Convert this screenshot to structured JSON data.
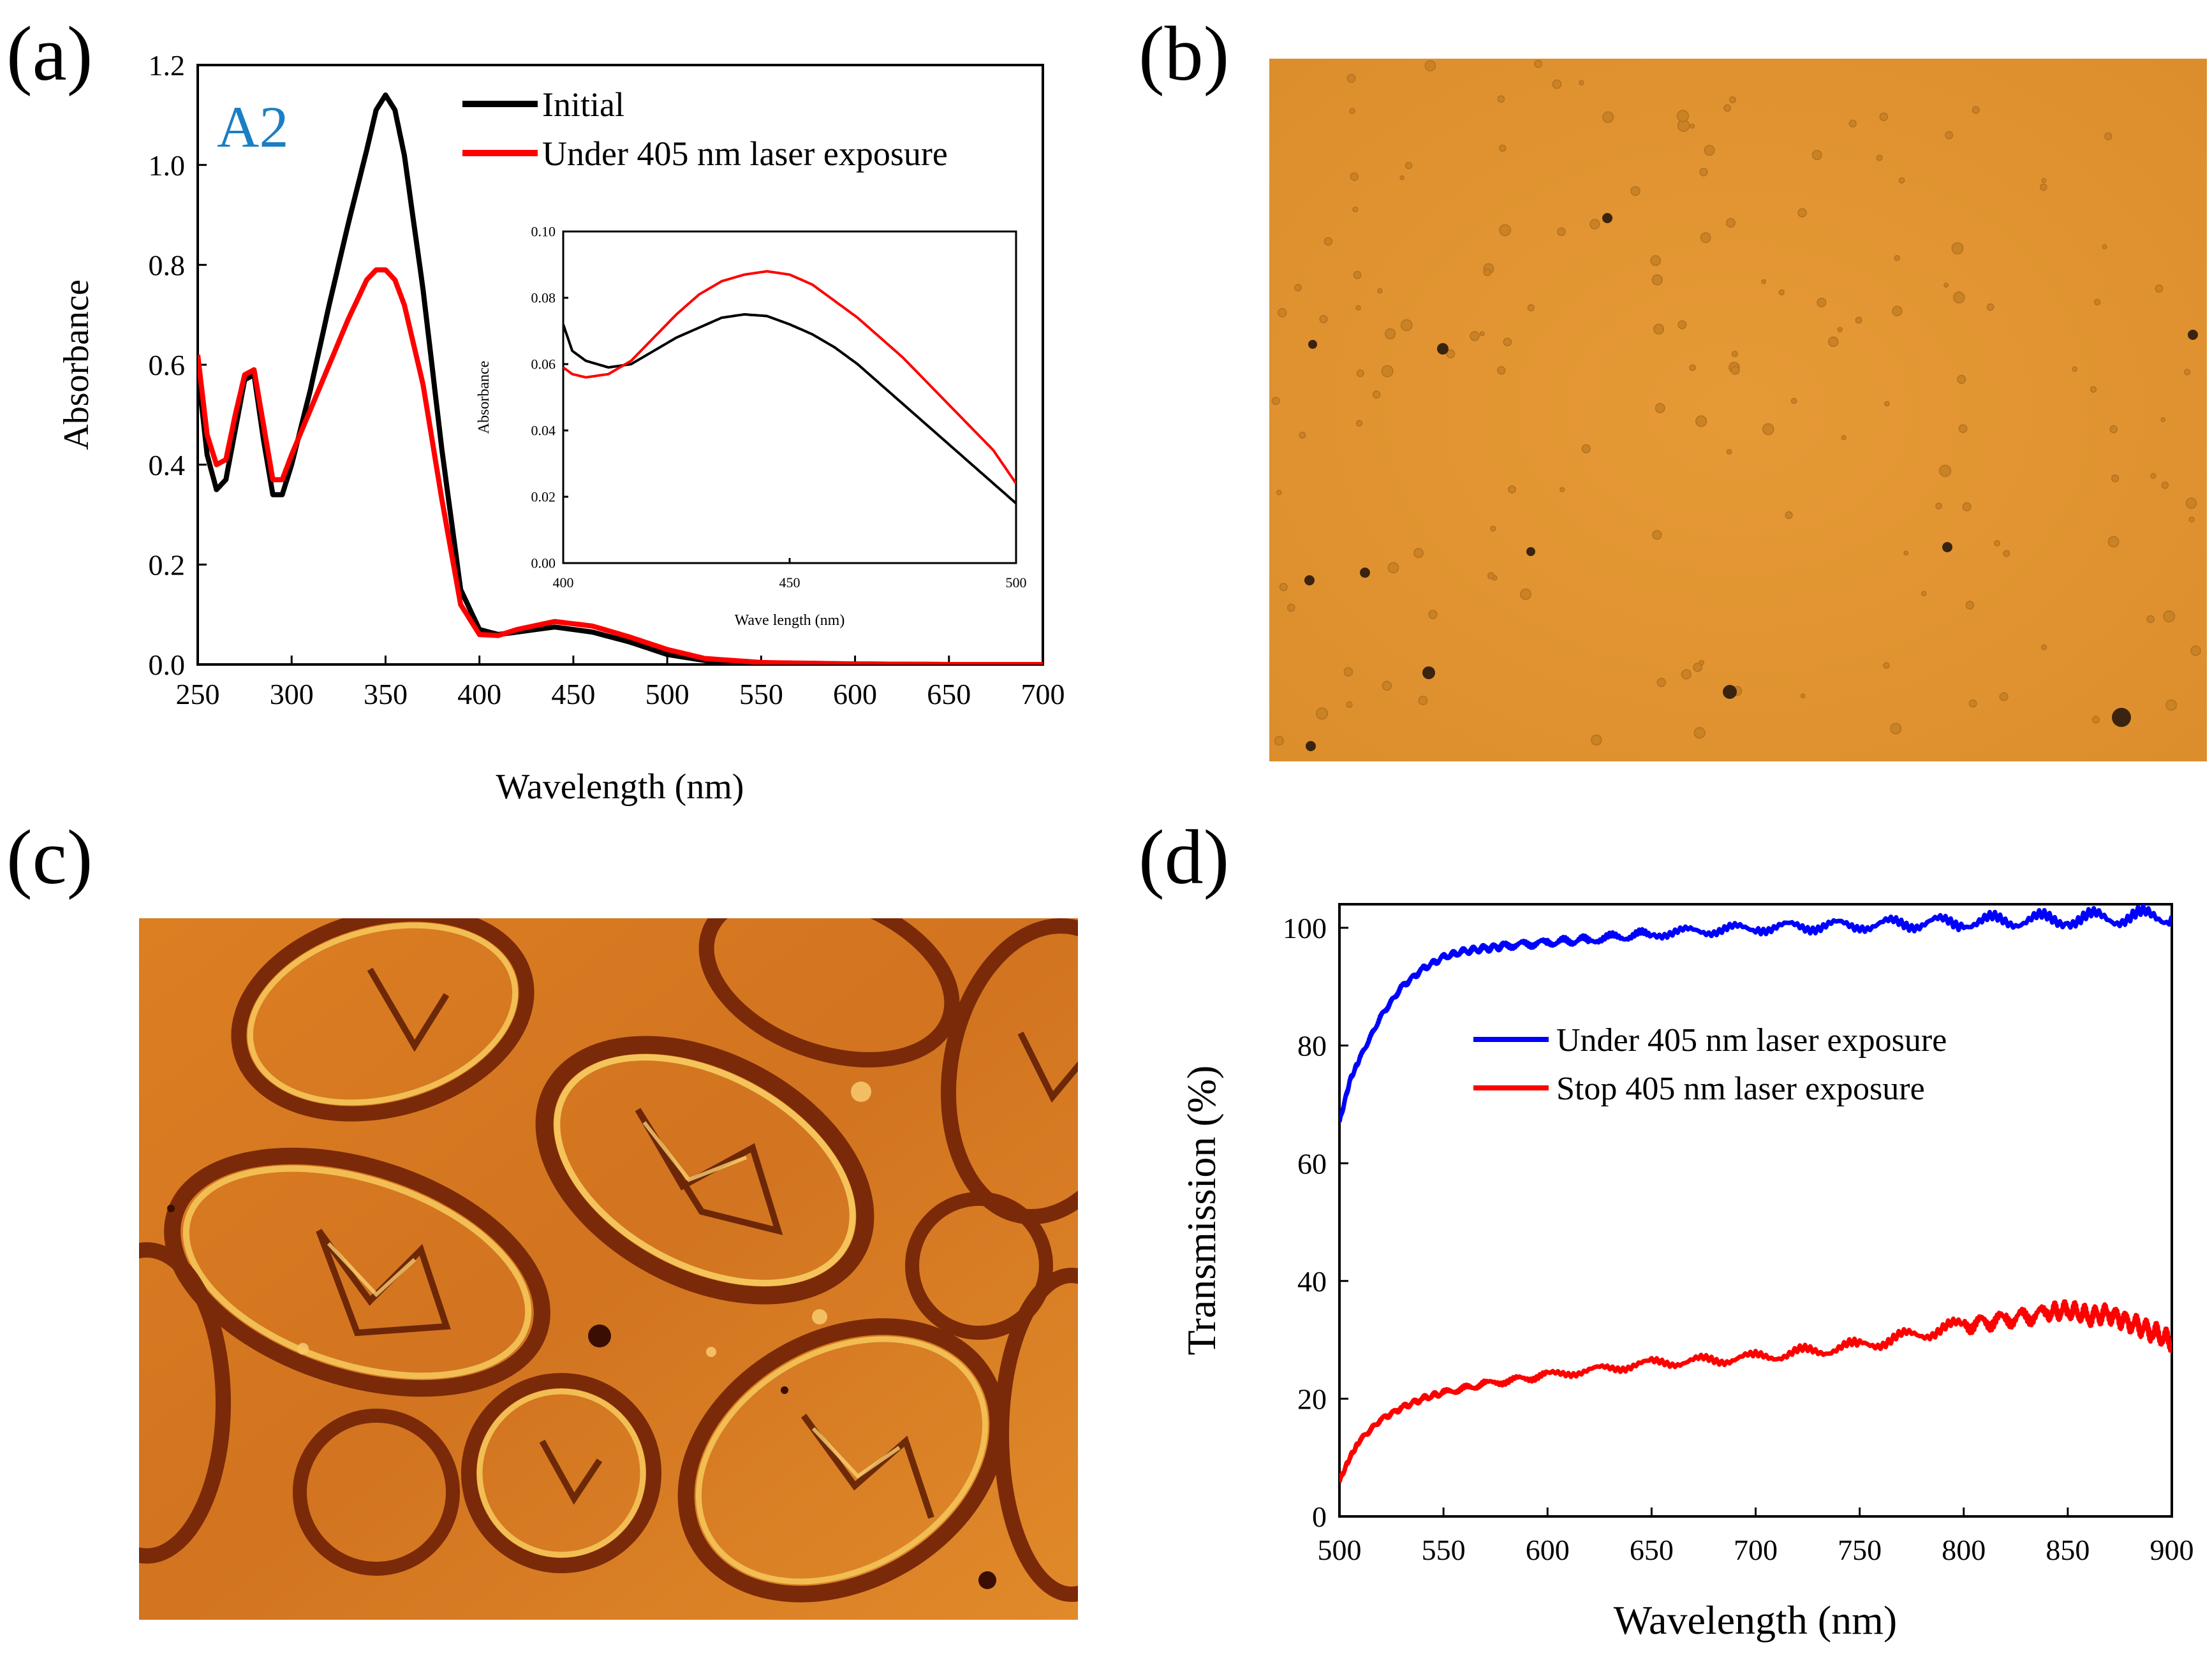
{
  "panels": {
    "a": "(a)",
    "b": "(b)",
    "c": "(c)",
    "d": "(d)"
  },
  "chart_data": [
    {
      "id": "a",
      "type": "line",
      "tag": "A2",
      "xlabel": "Wavelength (nm)",
      "ylabel": "Absorbance",
      "xlim": [
        250,
        700
      ],
      "ylim": [
        0,
        1.2
      ],
      "xticks": [
        250,
        300,
        350,
        400,
        450,
        500,
        550,
        600,
        650,
        700
      ],
      "yticks": [
        0.0,
        0.2,
        0.4,
        0.6,
        0.8,
        1.0,
        1.2
      ],
      "ytick_labels": [
        "0.0",
        "0.2",
        "0.4",
        "0.6",
        "0.8",
        "1.0",
        "1.2"
      ],
      "legend": "top-right",
      "series": [
        {
          "name": "Initial",
          "color": "#000000",
          "x": [
            250,
            255,
            260,
            265,
            270,
            275,
            280,
            285,
            290,
            295,
            300,
            310,
            320,
            330,
            340,
            345,
            350,
            355,
            360,
            370,
            380,
            390,
            400,
            410,
            420,
            440,
            460,
            480,
            500,
            520,
            550,
            600,
            650,
            700
          ],
          "y": [
            0.59,
            0.42,
            0.35,
            0.37,
            0.47,
            0.57,
            0.58,
            0.45,
            0.34,
            0.34,
            0.4,
            0.55,
            0.72,
            0.88,
            1.03,
            1.11,
            1.14,
            1.11,
            1.02,
            0.75,
            0.43,
            0.15,
            0.07,
            0.06,
            0.065,
            0.075,
            0.065,
            0.045,
            0.02,
            0.008,
            0.003,
            0.001,
            0.0,
            0.0
          ]
        },
        {
          "name": "Under 405 nm laser exposure",
          "color": "#ff0000",
          "x": [
            250,
            255,
            260,
            265,
            270,
            275,
            280,
            285,
            290,
            295,
            300,
            310,
            320,
            330,
            340,
            345,
            350,
            355,
            360,
            370,
            380,
            390,
            400,
            410,
            420,
            440,
            460,
            480,
            500,
            520,
            550,
            600,
            650,
            700
          ],
          "y": [
            0.62,
            0.46,
            0.4,
            0.41,
            0.5,
            0.58,
            0.59,
            0.48,
            0.37,
            0.37,
            0.42,
            0.51,
            0.6,
            0.69,
            0.77,
            0.79,
            0.79,
            0.77,
            0.72,
            0.56,
            0.33,
            0.12,
            0.06,
            0.058,
            0.07,
            0.086,
            0.077,
            0.055,
            0.03,
            0.012,
            0.004,
            0.001,
            0.0,
            0.0
          ]
        }
      ]
    },
    {
      "id": "a-inset",
      "type": "line",
      "xlabel": "Wave length (nm)",
      "ylabel": "Absorbance",
      "xlim": [
        400,
        500
      ],
      "ylim": [
        0,
        0.1
      ],
      "xticks": [
        400,
        450,
        500
      ],
      "yticks": [
        0.0,
        0.02,
        0.04,
        0.06,
        0.08,
        0.1
      ],
      "ytick_labels": [
        "0.00",
        "0.02",
        "0.04",
        "0.06",
        "0.08",
        "0.10"
      ],
      "series": [
        {
          "name": "Initial",
          "color": "#000000",
          "x": [
            400,
            402,
            405,
            410,
            415,
            420,
            425,
            430,
            435,
            440,
            445,
            450,
            455,
            460,
            465,
            470,
            475,
            480,
            485,
            490,
            495,
            500
          ],
          "y": [
            0.072,
            0.064,
            0.061,
            0.059,
            0.06,
            0.064,
            0.068,
            0.071,
            0.074,
            0.075,
            0.0745,
            0.072,
            0.069,
            0.065,
            0.06,
            0.054,
            0.048,
            0.042,
            0.036,
            0.03,
            0.024,
            0.018
          ]
        },
        {
          "name": "Under 405 nm laser exposure",
          "color": "#ff0000",
          "x": [
            400,
            402,
            405,
            410,
            415,
            420,
            425,
            430,
            435,
            440,
            445,
            450,
            455,
            460,
            465,
            470,
            475,
            480,
            485,
            490,
            495,
            500
          ],
          "y": [
            0.059,
            0.057,
            0.056,
            0.057,
            0.061,
            0.068,
            0.075,
            0.081,
            0.085,
            0.087,
            0.088,
            0.087,
            0.084,
            0.079,
            0.074,
            0.068,
            0.062,
            0.055,
            0.048,
            0.041,
            0.034,
            0.024
          ]
        }
      ]
    },
    {
      "id": "d",
      "type": "line",
      "xlabel": "Wavelength (nm)",
      "ylabel": "Transmission (%)",
      "xlim": [
        500,
        900
      ],
      "ylim": [
        0,
        104
      ],
      "xticks": [
        500,
        550,
        600,
        650,
        700,
        750,
        800,
        850,
        900
      ],
      "yticks": [
        0,
        20,
        40,
        60,
        80,
        100
      ],
      "ytick_labels": [
        "0",
        "20",
        "40",
        "60",
        "80",
        "100"
      ],
      "legend": "center",
      "series": [
        {
          "name": "Under 405 nm laser exposure",
          "color": "#0000ff",
          "x": [
            500,
            505,
            510,
            520,
            530,
            540,
            550,
            560,
            570,
            580,
            600,
            620,
            650,
            700,
            750,
            800,
            850,
            900
          ],
          "y": [
            67,
            74,
            78,
            85,
            90,
            93,
            95,
            96,
            96.5,
            97,
            97.5,
            98,
            99,
            100,
            100.5,
            101,
            101.5,
            102
          ]
        },
        {
          "name": "Stop 405 nm laser exposure",
          "color": "#ff0000",
          "x": [
            500,
            505,
            510,
            520,
            530,
            540,
            550,
            570,
            600,
            650,
            700,
            750,
            800,
            820,
            840,
            850,
            860,
            870,
            880,
            890,
            900
          ],
          "y": [
            6,
            10,
            13,
            16.5,
            18.5,
            20,
            21,
            22.5,
            24,
            26,
            27,
            29,
            32.5,
            33.5,
            34.5,
            35,
            34,
            34.5,
            33,
            31.5,
            29.5
          ]
        }
      ]
    }
  ]
}
